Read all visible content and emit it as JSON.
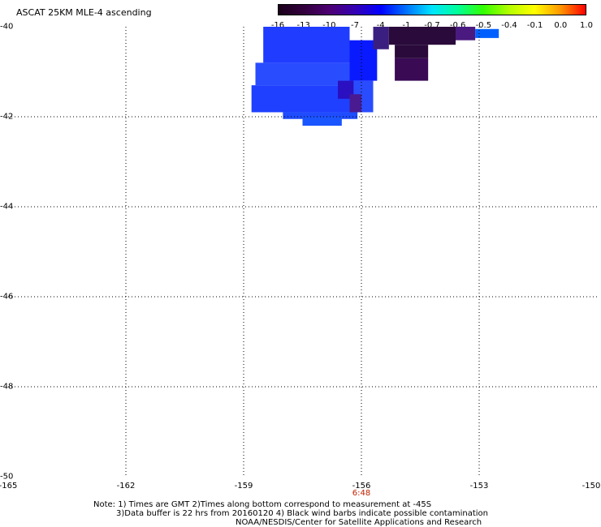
{
  "title": "ASCAT 25KM MLE-4 ascending",
  "colorbar": {
    "labels": [
      "-16",
      "-13",
      "-10",
      "-7",
      "-4",
      "-1",
      "-0.7",
      "-0.6",
      "-0.5",
      "-0.4",
      "-0.1",
      "0.0",
      "1.0"
    ],
    "colors": [
      "#1a001a",
      "#33003d",
      "#4d0073",
      "#3300b3",
      "#0000ff",
      "#0073ff",
      "#00e5ff",
      "#00ff99",
      "#33ff00",
      "#b3ff00",
      "#ffff00",
      "#ff9900",
      "#ff0000"
    ]
  },
  "map": {
    "lon_ticks": [
      "-165",
      "-162",
      "-159",
      "-156",
      "-153",
      "-150"
    ],
    "lat_ticks": [
      "-40",
      "-42",
      "-44",
      "-46",
      "-48",
      "-50"
    ],
    "lon_range": [
      -165,
      -150
    ],
    "lat_range": [
      -50,
      -40
    ],
    "time_labels": [
      {
        "lon": -156,
        "text": "6:48"
      }
    ],
    "swath_cells": [
      {
        "lon0": -158.5,
        "lon1": -156.3,
        "lat0": -40.8,
        "lat1": -40.0,
        "color": "#1f3cff"
      },
      {
        "lon0": -156.3,
        "lon1": -155.6,
        "lat0": -41.2,
        "lat1": -40.3,
        "color": "#0a1aff"
      },
      {
        "lon0": -155.7,
        "lon1": -155.3,
        "lat0": -40.5,
        "lat1": -40.0,
        "color": "#3a1f80"
      },
      {
        "lon0": -155.3,
        "lon1": -153.6,
        "lat0": -40.4,
        "lat1": -40.0,
        "color": "#2a0a3a"
      },
      {
        "lon0": -153.6,
        "lon1": -153.1,
        "lat0": -40.3,
        "lat1": -40.0,
        "color": "#4a1a80"
      },
      {
        "lon0": -153.1,
        "lon1": -152.5,
        "lat0": -40.25,
        "lat1": -40.05,
        "color": "#0060ff"
      },
      {
        "lon0": -155.15,
        "lon1": -154.3,
        "lat0": -40.7,
        "lat1": -40.4,
        "color": "#2a0a3a"
      },
      {
        "lon0": -155.15,
        "lon1": -154.3,
        "lat0": -41.2,
        "lat1": -40.7,
        "color": "#3a0a55"
      },
      {
        "lon0": -158.7,
        "lon1": -156.3,
        "lat0": -41.3,
        "lat1": -40.8,
        "color": "#2a4cff"
      },
      {
        "lon0": -158.8,
        "lon1": -156.3,
        "lat0": -41.9,
        "lat1": -41.3,
        "color": "#1f40ff"
      },
      {
        "lon0": -156.3,
        "lon1": -155.7,
        "lat0": -41.9,
        "lat1": -41.2,
        "color": "#2a4cff"
      },
      {
        "lon0": -156.6,
        "lon1": -156.2,
        "lat0": -41.6,
        "lat1": -41.2,
        "color": "#2a10c0"
      },
      {
        "lon0": -156.3,
        "lon1": -156.0,
        "lat0": -41.9,
        "lat1": -41.5,
        "color": "#4a1a90"
      },
      {
        "lon0": -158.0,
        "lon1": -156.1,
        "lat0": -42.05,
        "lat1": -41.9,
        "color": "#1f4cff"
      },
      {
        "lon0": -157.5,
        "lon1": -156.5,
        "lat0": -42.2,
        "lat1": -42.0,
        "color": "#1a55ff"
      }
    ]
  },
  "notes": [
    "Note: 1) Times are GMT 2)Times along bottom correspond to measurement at -45S",
    "3)Data buffer is 22 hrs from 20160120 4) Black wind barbs indicate possible contamination",
    "NOAA/NESDIS/Center for Satellite Applications and Research"
  ]
}
